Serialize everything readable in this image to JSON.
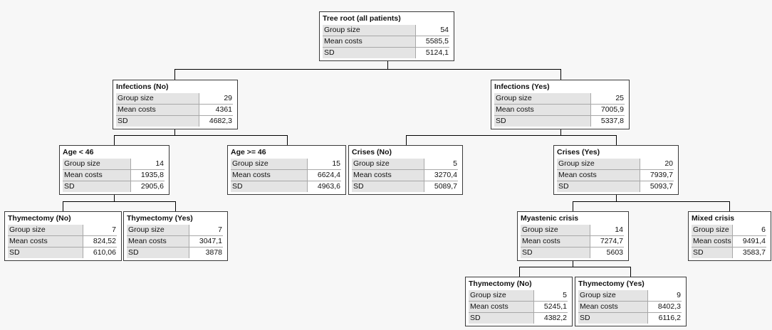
{
  "labels": {
    "group_size": "Group size",
    "mean_costs": "Mean costs",
    "sd": "SD"
  },
  "nodes": {
    "root": {
      "title": "Tree root (all patients)",
      "group_size": "54",
      "mean_costs": "5585,5",
      "sd": "5124,1"
    },
    "infections_no": {
      "title": "Infections (No)",
      "group_size": "29",
      "mean_costs": "4361",
      "sd": "4682,3"
    },
    "infections_yes": {
      "title": "Infections (Yes)",
      "group_size": "25",
      "mean_costs": "7005,9",
      "sd": "5337,8"
    },
    "age_lt_46": {
      "title": "Age < 46",
      "group_size": "14",
      "mean_costs": "1935,8",
      "sd": "2905,6"
    },
    "age_ge_46": {
      "title": "Age >= 46",
      "group_size": "15",
      "mean_costs": "6624,4",
      "sd": "4963,6"
    },
    "crises_no": {
      "title": "Crises (No)",
      "group_size": "5",
      "mean_costs": "3270,4",
      "sd": "5089,7"
    },
    "crises_yes": {
      "title": "Crises (Yes)",
      "group_size": "20",
      "mean_costs": "7939,7",
      "sd": "5093,7"
    },
    "thym_no_a": {
      "title": "Thymectomy (No)",
      "group_size": "7",
      "mean_costs": "824,52",
      "sd": "610,06"
    },
    "thym_yes_a": {
      "title": "Thymectomy (Yes)",
      "group_size": "7",
      "mean_costs": "3047,1",
      "sd": "3878"
    },
    "myastenic": {
      "title": "Myastenic crisis",
      "group_size": "14",
      "mean_costs": "7274,7",
      "sd": "5603"
    },
    "mixed": {
      "title": "Mixed crisis",
      "group_size": "6",
      "mean_costs": "9491,4",
      "sd": "3583,7"
    },
    "thym_no_b": {
      "title": "Thymectomy (No)",
      "group_size": "5",
      "mean_costs": "5245,1",
      "sd": "4382,2"
    },
    "thym_yes_b": {
      "title": "Thymectomy (Yes)",
      "group_size": "9",
      "mean_costs": "8402,3",
      "sd": "6116,2"
    }
  },
  "colors": {
    "node_border": "#3a3a3a",
    "label_background": "#e4e4e4",
    "edge": "#000000",
    "page_background": "#f7f7f7"
  }
}
